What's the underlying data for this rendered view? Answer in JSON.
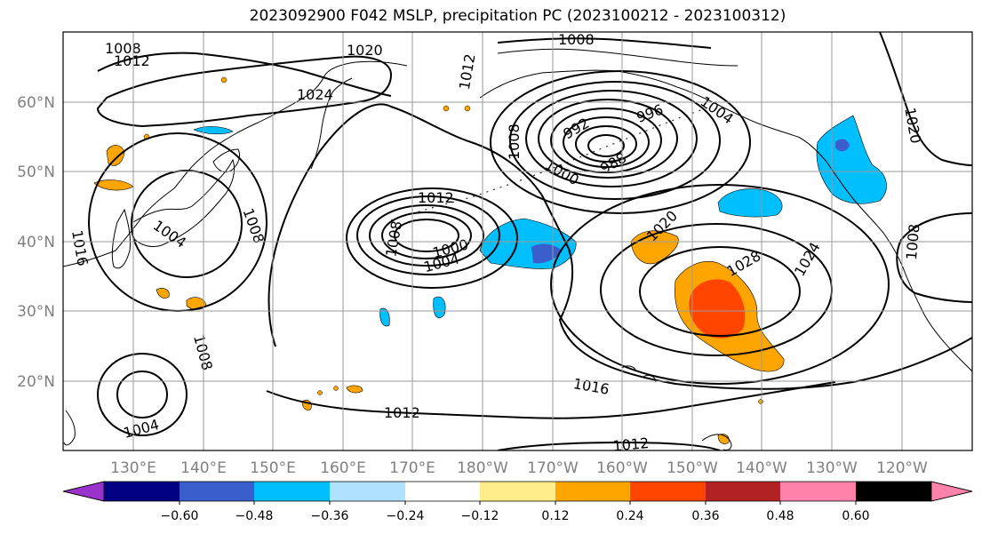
{
  "title": "2023092900 F042 MSLP, precipitation PC (2023100212 - 2023100312)",
  "lat_labels": [
    "60°N",
    "50°N",
    "40°N",
    "30°N",
    "20°N"
  ],
  "lon_labels": [
    "130°E",
    "140°E",
    "150°E",
    "160°E",
    "170°E",
    "180°W",
    "170°W",
    "160°W",
    "150°W",
    "140°W",
    "130°W",
    "120°W"
  ],
  "isobar_labels": [
    "1008",
    "1012",
    "1020",
    "1008",
    "1012",
    "1024",
    "992",
    "996",
    "1004",
    "988",
    "1000",
    "1008",
    "1004",
    "1008",
    "1012",
    "1008",
    "1000",
    "1004",
    "1020",
    "1028",
    "1024",
    "1020",
    "1008",
    "1016",
    "1012",
    "1012",
    "1008",
    "1004",
    "1016"
  ],
  "colorbar": {
    "colors": [
      "#9933cc",
      "#000080",
      "#3a5fcd",
      "#00bfff",
      "#b0e2ff",
      "#ffffff",
      "#ffec8b",
      "#ffa500",
      "#ff4500",
      "#b22222",
      "#ff82ab"
    ],
    "tick_labels": [
      "−0.60",
      "−0.48",
      "−0.36",
      "−0.24",
      "−0.12",
      "0.12",
      "0.24",
      "0.36",
      "0.48",
      "0.60"
    ]
  }
}
